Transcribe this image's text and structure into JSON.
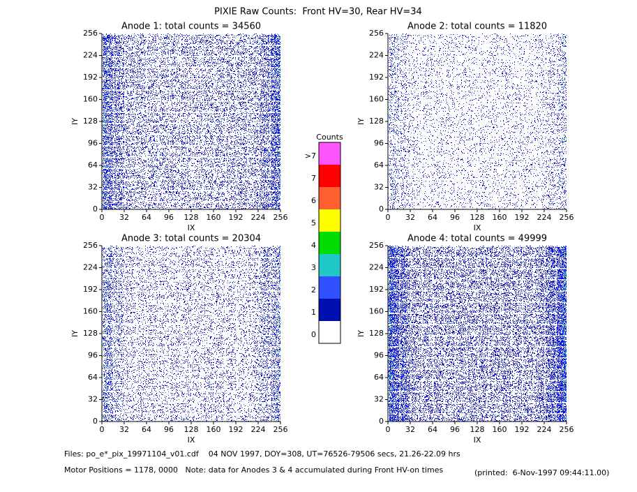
{
  "title": "PIXIE Raw Counts:  Front HV=30, Rear HV=34",
  "chart_data": [
    {
      "type": "heatmap",
      "title": "Anode 1: total counts = 34560",
      "xlabel": "IX",
      "ylabel": "IY",
      "xlim": [
        0,
        256
      ],
      "ylim": [
        0,
        256
      ],
      "xticks": [
        0,
        32,
        64,
        96,
        128,
        160,
        192,
        224,
        256
      ],
      "yticks": [
        0,
        32,
        64,
        96,
        128,
        160,
        192,
        224,
        256
      ]
    },
    {
      "type": "heatmap",
      "title": "Anode 2: total counts = 11820",
      "xlabel": "IX",
      "ylabel": "IY",
      "xlim": [
        0,
        256
      ],
      "ylim": [
        0,
        256
      ],
      "xticks": [
        0,
        32,
        64,
        96,
        128,
        160,
        192,
        224,
        256
      ],
      "yticks": [
        0,
        32,
        64,
        96,
        128,
        160,
        192,
        224,
        256
      ]
    },
    {
      "type": "heatmap",
      "title": "Anode 3: total counts = 20304",
      "xlabel": "IX",
      "ylabel": "IY",
      "xlim": [
        0,
        256
      ],
      "ylim": [
        0,
        256
      ],
      "xticks": [
        0,
        32,
        64,
        96,
        128,
        160,
        192,
        224,
        256
      ],
      "yticks": [
        0,
        32,
        64,
        96,
        128,
        160,
        192,
        224,
        256
      ]
    },
    {
      "type": "heatmap",
      "title": "Anode 4: total counts = 49999",
      "xlabel": "IX",
      "ylabel": "IY",
      "xlim": [
        0,
        256
      ],
      "ylim": [
        0,
        256
      ],
      "xticks": [
        0,
        32,
        64,
        96,
        128,
        160,
        192,
        224,
        256
      ],
      "yticks": [
        0,
        32,
        64,
        96,
        128,
        160,
        192,
        224,
        256
      ]
    }
  ],
  "colorbar": {
    "title": "Counts",
    "levels": [
      {
        "label": "0",
        "color": "#ffffff"
      },
      {
        "label": "1",
        "color": "#0010b0"
      },
      {
        "label": "2",
        "color": "#3050ff"
      },
      {
        "label": "3",
        "color": "#20c8c8"
      },
      {
        "label": "4",
        "color": "#00dd00"
      },
      {
        "label": "5",
        "color": "#ffff00"
      },
      {
        "label": "6",
        "color": "#ff6030"
      },
      {
        "label": "7",
        "color": "#ff0000"
      },
      {
        "label": ">7",
        "color": "#ff55ff"
      }
    ]
  },
  "footer": {
    "files": "Files: po_e*_pix_19971104_v01.cdf    04 NOV 1997, DOY=308, UT=76526-79506 secs, 21.26-22.09 hrs",
    "motor": "Motor Positions = 1178, 0000   Note: data for Anodes 3 & 4 accumulated during Front HV-on times",
    "printed": "(printed:  6-Nov-1997 09:44:11.00)"
  }
}
